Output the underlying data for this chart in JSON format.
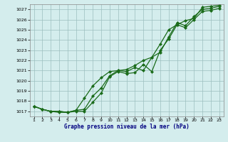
{
  "x": [
    1,
    2,
    3,
    4,
    5,
    6,
    7,
    8,
    9,
    10,
    11,
    12,
    13,
    14,
    15,
    16,
    17,
    18,
    19,
    20,
    21,
    22,
    23
  ],
  "line1": [
    1017.5,
    1017.2,
    1017.0,
    1017.0,
    1016.9,
    1017.1,
    1018.3,
    1019.5,
    1020.3,
    1020.9,
    1021.0,
    1021.1,
    1021.5,
    1022.0,
    1022.3,
    1023.6,
    1025.0,
    1025.5,
    1025.9,
    1026.1,
    1027.2,
    1027.3,
    1027.4
  ],
  "line2": [
    1017.5,
    1017.2,
    1017.0,
    1017.0,
    1016.9,
    1017.1,
    1017.2,
    1018.5,
    1019.3,
    1020.5,
    1021.0,
    1020.9,
    1021.3,
    1021.0,
    1022.3,
    1022.8,
    1024.3,
    1025.7,
    1025.4,
    1026.3,
    1027.0,
    1027.1,
    1027.3
  ],
  "line3": [
    1017.5,
    1017.2,
    1017.0,
    1016.9,
    1016.9,
    1017.0,
    1017.0,
    1017.9,
    1018.8,
    1020.4,
    1020.9,
    1020.7,
    1020.8,
    1021.6,
    1020.9,
    1023.0,
    1024.1,
    1025.5,
    1025.2,
    1026.0,
    1026.8,
    1026.9,
    1027.1
  ],
  "ylim": [
    1016.5,
    1027.5
  ],
  "yticks": [
    1017,
    1018,
    1019,
    1020,
    1021,
    1022,
    1023,
    1024,
    1025,
    1026,
    1027
  ],
  "xlim": [
    0.5,
    23.5
  ],
  "xticks": [
    1,
    2,
    3,
    4,
    5,
    6,
    7,
    8,
    9,
    10,
    11,
    12,
    13,
    14,
    15,
    16,
    17,
    18,
    19,
    20,
    21,
    22,
    23
  ],
  "xlabel": "Graphe pression niveau de la mer (hPa)",
  "line_color": "#1a6b1a",
  "bg_color": "#d4eded",
  "grid_color": "#9bbfbf",
  "marker": "D",
  "markersize": 2,
  "linewidth": 0.9
}
